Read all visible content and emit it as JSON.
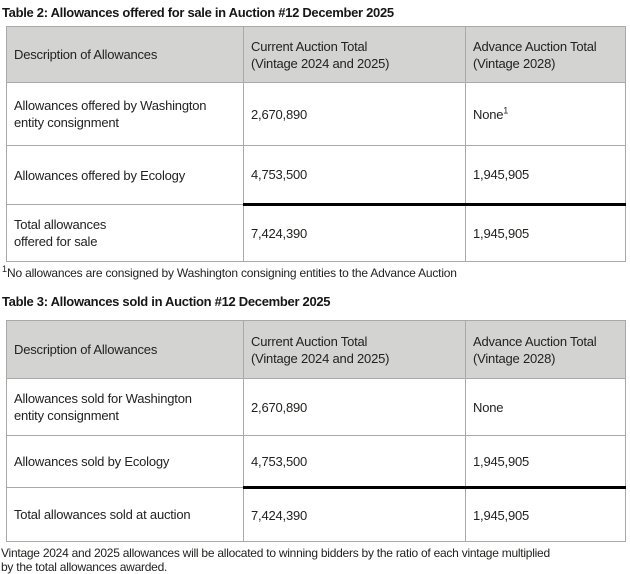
{
  "colors": {
    "header_fill": "#d3d3d1",
    "grid_border": "#a9a9a7",
    "total_rule": "#000000",
    "text": "#222220",
    "background": "#ffffff"
  },
  "tables": [
    {
      "title": "Table 2: Allowances offered for sale in Auction #12 December 2025",
      "columns": [
        "Description of Allowances",
        "Current Auction Total\n(Vintage 2024 and 2025)",
        "Advance Auction Total\n(Vintage 2028)"
      ],
      "rows": [
        {
          "desc": "Allowances offered by Washington\nentity consignment",
          "current": "2,670,890",
          "advance": "None",
          "advance_sup": "1"
        },
        {
          "desc": "Allowances offered by Ecology",
          "current": "4,753,500",
          "advance": "1,945,905"
        },
        {
          "desc": "Total allowances\noffered for sale",
          "current": "7,424,390",
          "advance": "1,945,905"
        }
      ],
      "footnote_sup": "1",
      "footnote": "No allowances are consigned by Washington consigning entities to the Advance Auction"
    },
    {
      "title": "Table 3: Allowances sold in Auction #12 December 2025",
      "columns": [
        "Description of Allowances",
        "Current Auction Total\n(Vintage 2024 and 2025)",
        "Advance Auction Total\n(Vintage 2028)"
      ],
      "rows": [
        {
          "desc": "Allowances sold for Washington\nentity consignment",
          "current": "2,670,890",
          "advance": "None"
        },
        {
          "desc": "Allowances sold by Ecology",
          "current": "4,753,500",
          "advance": "1,945,905"
        },
        {
          "desc": "Total allowances sold at auction",
          "current": "7,424,390",
          "advance": "1,945,905"
        }
      ]
    }
  ],
  "footer_note": "Vintage 2024 and 2025 allowances will be allocated to winning bidders by the ratio of each vintage multiplied\nby the total allowances awarded."
}
